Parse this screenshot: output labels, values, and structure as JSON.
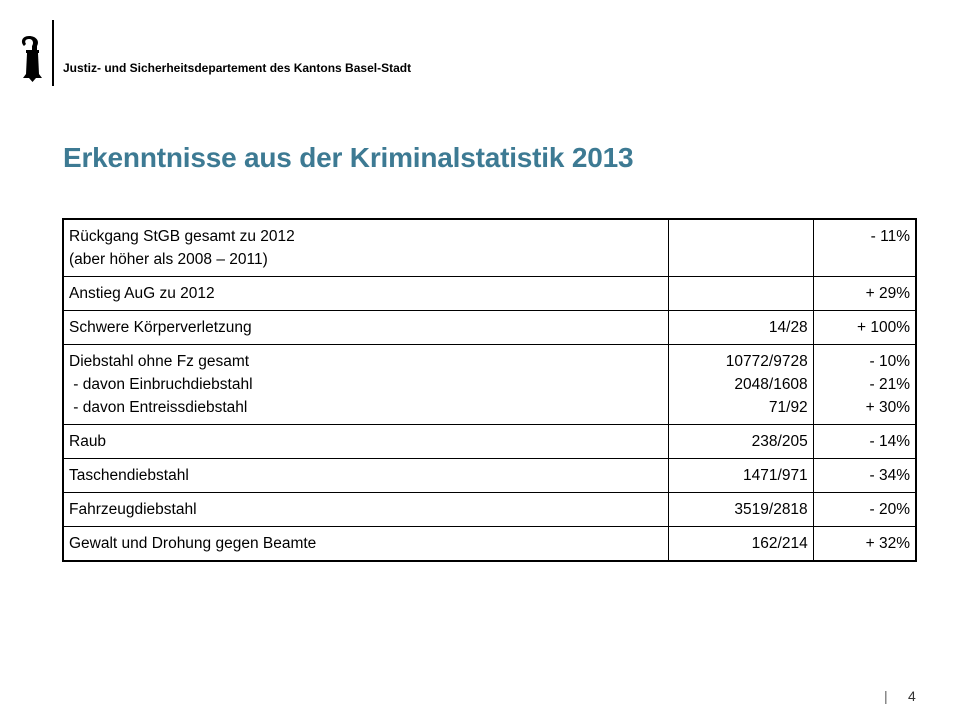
{
  "header": {
    "logo_icon": "basel-staff-icon",
    "department": "Justiz- und Sicherheitsdepartement des Kantons Basel-Stadt"
  },
  "title": "Erkenntnisse aus der Kriminalstatistik 2013",
  "title_color": "#3d7a93",
  "rows": [
    {
      "label": [
        "Rückgang StGB gesamt zu 2012",
        "(aber höher als 2008 – 2011)"
      ],
      "counts": [
        ""
      ],
      "change": [
        "- 11%"
      ]
    },
    {
      "label": [
        "Anstieg AuG zu 2012"
      ],
      "counts": [
        ""
      ],
      "change": [
        "+ 29%"
      ]
    },
    {
      "label": [
        "Schwere Körperverletzung"
      ],
      "counts": [
        "14/28"
      ],
      "change": [
        "+ 100%"
      ]
    },
    {
      "label": [
        "Diebstahl ohne Fz gesamt",
        " - davon Einbruchdiebstahl",
        " - davon Entreissdiebstahl"
      ],
      "counts": [
        "10772/9728",
        "2048/1608",
        "71/92"
      ],
      "change": [
        "- 10%",
        "- 21%",
        "+ 30%"
      ]
    },
    {
      "label": [
        "Raub"
      ],
      "counts": [
        "238/205"
      ],
      "change": [
        "- 14%"
      ]
    },
    {
      "label": [
        "Taschendiebstahl"
      ],
      "counts": [
        "1471/971"
      ],
      "change": [
        "- 34%"
      ]
    },
    {
      "label": [
        "Fahrzeugdiebstahl"
      ],
      "counts": [
        "3519/2818"
      ],
      "change": [
        "- 20%"
      ]
    },
    {
      "label": [
        "Gewalt und Drohung gegen Beamte"
      ],
      "counts": [
        "162/214"
      ],
      "change": [
        "+ 32%"
      ]
    }
  ],
  "footer": {
    "separator": "|",
    "page": "4"
  }
}
